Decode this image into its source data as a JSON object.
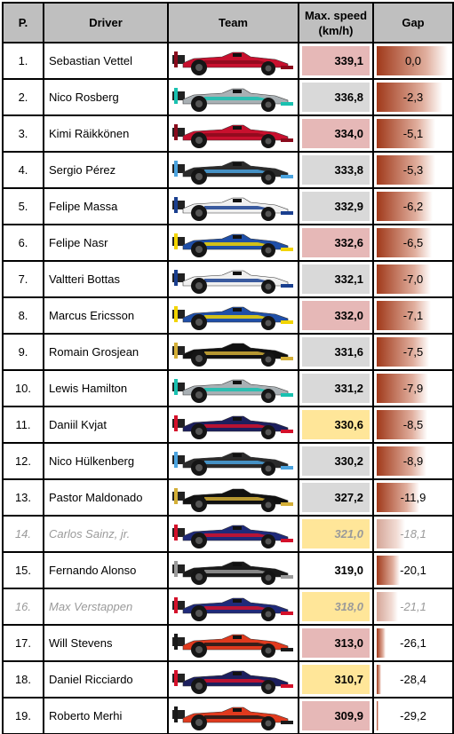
{
  "header": {
    "pos": "P.",
    "driver": "Driver",
    "team": "Team",
    "speed_line1": "Max. speed",
    "speed_line2": "(km/h)",
    "gap": "Gap"
  },
  "colors": {
    "engine_ferrari": "#e6b8b7",
    "engine_mercedes": "#d9d9d9",
    "engine_renault": "#ffe699",
    "engine_honda": "#ffffff",
    "gap_bar": "#a0391a"
  },
  "rows": [
    {
      "pos": "1.",
      "driver": "Sebastian Vettel",
      "team_icon": "ferrari-car-icon",
      "livery": "#c8102e",
      "accent": "#8a0a1c",
      "speed": "339,1",
      "engine": "ferrari",
      "gap": "0,0",
      "gap_fill": 1.0,
      "dimmed": false
    },
    {
      "pos": "2.",
      "driver": "Nico Rosberg",
      "team_icon": "mercedes-car-icon",
      "livery": "#a9b0b4",
      "accent": "#19c1b0",
      "speed": "336,8",
      "engine": "mercedes",
      "gap": "-2,3",
      "gap_fill": 0.92,
      "dimmed": false
    },
    {
      "pos": "3.",
      "driver": "Kimi Räikkönen",
      "team_icon": "ferrari-car-icon",
      "livery": "#c8102e",
      "accent": "#8a0a1c",
      "speed": "334,0",
      "engine": "ferrari",
      "gap": "-5,1",
      "gap_fill": 0.83,
      "dimmed": false
    },
    {
      "pos": "4.",
      "driver": "Sergio Pérez",
      "team_icon": "force-india-car-icon",
      "livery": "#2b2b2b",
      "accent": "#4aa3df",
      "speed": "333,8",
      "engine": "mercedes",
      "gap": "-5,3",
      "gap_fill": 0.82,
      "dimmed": false
    },
    {
      "pos": "5.",
      "driver": "Felipe Massa",
      "team_icon": "williams-car-icon",
      "livery": "#f0f0f0",
      "accent": "#1a3f8f",
      "speed": "332,9",
      "engine": "mercedes",
      "gap": "-6,2",
      "gap_fill": 0.79,
      "dimmed": false
    },
    {
      "pos": "6.",
      "driver": "Felipe Nasr",
      "team_icon": "sauber-car-icon",
      "livery": "#1f4fa8",
      "accent": "#f2d400",
      "speed": "332,6",
      "engine": "ferrari",
      "gap": "-6,5",
      "gap_fill": 0.78,
      "dimmed": false
    },
    {
      "pos": "7.",
      "driver": "Valtteri Bottas",
      "team_icon": "williams-car-icon",
      "livery": "#f0f0f0",
      "accent": "#1a3f8f",
      "speed": "332,1",
      "engine": "mercedes",
      "gap": "-7,0",
      "gap_fill": 0.76,
      "dimmed": false
    },
    {
      "pos": "8.",
      "driver": "Marcus Ericsson",
      "team_icon": "sauber-car-icon",
      "livery": "#1f4fa8",
      "accent": "#f2d400",
      "speed": "332,0",
      "engine": "ferrari",
      "gap": "-7,1",
      "gap_fill": 0.76,
      "dimmed": false
    },
    {
      "pos": "9.",
      "driver": "Romain Grosjean",
      "team_icon": "lotus-car-icon",
      "livery": "#111111",
      "accent": "#d4af37",
      "speed": "331,6",
      "engine": "mercedes",
      "gap": "-7,5",
      "gap_fill": 0.74,
      "dimmed": false
    },
    {
      "pos": "10.",
      "driver": "Lewis Hamilton",
      "team_icon": "mercedes-car-icon",
      "livery": "#a9b0b4",
      "accent": "#19c1b0",
      "speed": "331,2",
      "engine": "mercedes",
      "gap": "-7,9",
      "gap_fill": 0.73,
      "dimmed": false
    },
    {
      "pos": "11.",
      "driver": "Daniil Kvjat",
      "team_icon": "red-bull-car-icon",
      "livery": "#1c1f5e",
      "accent": "#d4102a",
      "speed": "330,6",
      "engine": "renault",
      "gap": "-8,5",
      "gap_fill": 0.71,
      "dimmed": false
    },
    {
      "pos": "12.",
      "driver": "Nico Hülkenberg",
      "team_icon": "force-india-car-icon",
      "livery": "#2b2b2b",
      "accent": "#4aa3df",
      "speed": "330,2",
      "engine": "mercedes",
      "gap": "-8,9",
      "gap_fill": 0.7,
      "dimmed": false
    },
    {
      "pos": "13.",
      "driver": "Pastor Maldonado",
      "team_icon": "lotus-car-icon",
      "livery": "#111111",
      "accent": "#d4af37",
      "speed": "327,2",
      "engine": "mercedes",
      "gap": "-11,9",
      "gap_fill": 0.6,
      "dimmed": false
    },
    {
      "pos": "14.",
      "driver": "Carlos Sainz, jr.",
      "team_icon": "toro-rosso-car-icon",
      "livery": "#1f2a7a",
      "accent": "#d4102a",
      "speed": "321,0",
      "engine": "renault",
      "gap": "-18,1",
      "gap_fill": 0.4,
      "dimmed": true
    },
    {
      "pos": "15.",
      "driver": "Fernando Alonso",
      "team_icon": "mclaren-car-icon",
      "livery": "#1a1a1a",
      "accent": "#9a9a9a",
      "speed": "319,0",
      "engine": "honda",
      "gap": "-20,1",
      "gap_fill": 0.33,
      "dimmed": false
    },
    {
      "pos": "16.",
      "driver": "Max Verstappen",
      "team_icon": "toro-rosso-car-icon",
      "livery": "#1f2a7a",
      "accent": "#d4102a",
      "speed": "318,0",
      "engine": "renault",
      "gap": "-21,1",
      "gap_fill": 0.3,
      "dimmed": true
    },
    {
      "pos": "17.",
      "driver": "Will Stevens",
      "team_icon": "manor-car-icon",
      "livery": "#e03a1e",
      "accent": "#1a1a1a",
      "speed": "313,0",
      "engine": "ferrari",
      "gap": "-26,1",
      "gap_fill": 0.13,
      "dimmed": false
    },
    {
      "pos": "18.",
      "driver": "Daniel Ricciardo",
      "team_icon": "red-bull-car-icon",
      "livery": "#1c1f5e",
      "accent": "#d4102a",
      "speed": "310,7",
      "engine": "renault",
      "gap": "-28,4",
      "gap_fill": 0.06,
      "dimmed": false
    },
    {
      "pos": "19.",
      "driver": "Roberto Merhi",
      "team_icon": "manor-car-icon",
      "livery": "#e03a1e",
      "accent": "#1a1a1a",
      "speed": "309,9",
      "engine": "ferrari",
      "gap": "-29,2",
      "gap_fill": 0.03,
      "dimmed": false
    }
  ]
}
